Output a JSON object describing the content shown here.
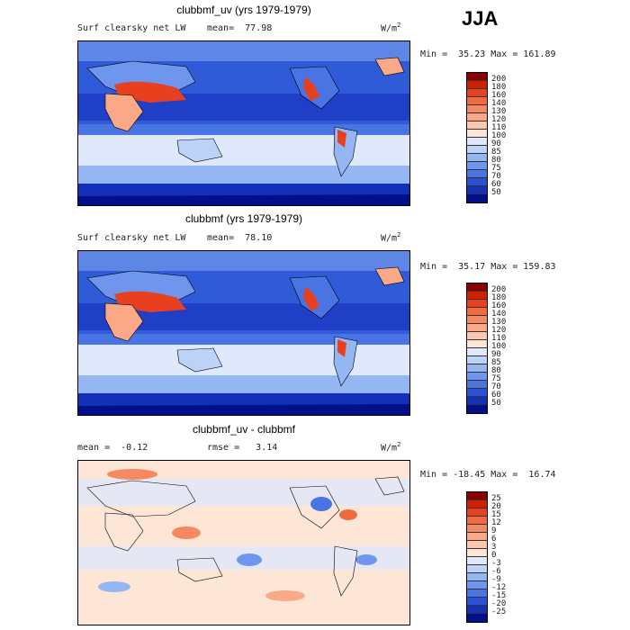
{
  "season": "JJA",
  "panels": [
    {
      "title": "clubbmf_uv (yrs 1979-1979)",
      "field": "Surf clearsky net LW",
      "mean_label": "mean=  77.98",
      "units": "W/m",
      "units_exp": "2",
      "minmax": "Min =  35.23 Max = 161.89",
      "levels": [
        "200",
        "180",
        "160",
        "140",
        "130",
        "120",
        "110",
        "100",
        "90",
        "85",
        "80",
        "75",
        "70",
        "60",
        "50"
      ],
      "colors": [
        "#8b0000",
        "#cc2200",
        "#e8401e",
        "#f06a40",
        "#f58a62",
        "#f9a988",
        "#fcc7ac",
        "#fde6d6",
        "#dfe9fb",
        "#bcd2f7",
        "#94b6f2",
        "#6d96ec",
        "#4a74e4",
        "#2a50d4",
        "#1230b8",
        "#00108a"
      ]
    },
    {
      "title": "clubbmf (yrs 1979-1979)",
      "field": "Surf clearsky net LW",
      "mean_label": "mean=  78.10",
      "units": "W/m",
      "units_exp": "2",
      "minmax": "Min =  35.17 Max = 159.83",
      "levels": [
        "200",
        "180",
        "160",
        "140",
        "130",
        "120",
        "110",
        "100",
        "90",
        "85",
        "80",
        "75",
        "70",
        "60",
        "50"
      ],
      "colors": [
        "#8b0000",
        "#cc2200",
        "#e8401e",
        "#f06a40",
        "#f58a62",
        "#f9a988",
        "#fcc7ac",
        "#fde6d6",
        "#dfe9fb",
        "#bcd2f7",
        "#94b6f2",
        "#6d96ec",
        "#4a74e4",
        "#2a50d4",
        "#1230b8",
        "#00108a"
      ]
    },
    {
      "title": "clubbmf_uv - clubbmf",
      "mean_label": "mean =  -0.12",
      "rmse_label": "rmse =   3.14",
      "units": "W/m",
      "units_exp": "2",
      "minmax": "Min = -18.45 Max =  16.74",
      "levels": [
        "25",
        "20",
        "15",
        "12",
        "9",
        "6",
        "3",
        "0",
        "-3",
        "-6",
        "-9",
        "-12",
        "-15",
        "-20",
        "-25"
      ],
      "colors": [
        "#8b0000",
        "#cc2200",
        "#e8401e",
        "#f06a40",
        "#f58a62",
        "#f9a988",
        "#fcc7ac",
        "#fde6d6",
        "#dfe9fb",
        "#bcd2f7",
        "#94b6f2",
        "#6d96ec",
        "#4a74e4",
        "#2a50d4",
        "#1230b8",
        "#00108a"
      ]
    }
  ]
}
